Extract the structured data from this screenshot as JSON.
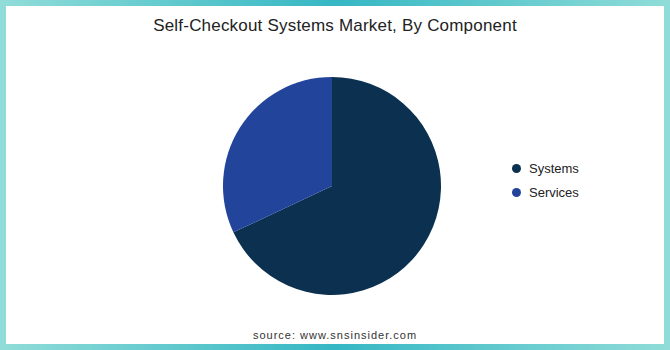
{
  "chart_data": {
    "type": "pie",
    "title": "Self-Checkout Systems Market, By Component",
    "categories": [
      "Systems",
      "Services"
    ],
    "values": [
      68,
      32
    ],
    "colors": [
      "#0b3050",
      "#22449b"
    ],
    "legend": "right",
    "source": "source: www.snsinsider.com"
  }
}
